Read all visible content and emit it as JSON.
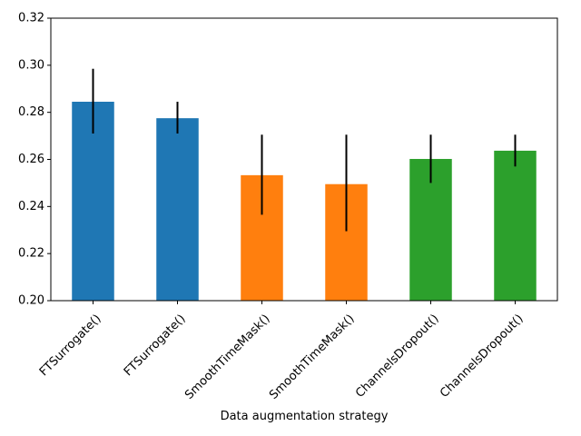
{
  "chart_data": {
    "type": "bar",
    "categories": [
      "FTSurrogate()",
      "FTSurrogate()",
      "SmoothTimeMask()",
      "SmoothTimeMask()",
      "ChannelsDropout()",
      "ChannelsDropout()"
    ],
    "values": [
      0.2845,
      0.2775,
      0.2533,
      0.2495,
      0.2602,
      0.2637
    ],
    "error_low": [
      0.271,
      0.271,
      0.2365,
      0.2295,
      0.25,
      0.257
    ],
    "error_high": [
      0.2985,
      0.2845,
      0.2705,
      0.2705,
      0.2705,
      0.2705
    ],
    "colors": [
      "#1f77b4",
      "#1f77b4",
      "#ff7f0e",
      "#ff7f0e",
      "#2ca02c",
      "#2ca02c"
    ],
    "error_color": "#000000",
    "xlabel": "Data augmentation strategy",
    "ylabel": "",
    "ylim": [
      0.2,
      0.32
    ],
    "yticks": [
      "0.20",
      "0.22",
      "0.24",
      "0.26",
      "0.28",
      "0.30",
      "0.32"
    ],
    "grid": false,
    "legend": "none"
  }
}
